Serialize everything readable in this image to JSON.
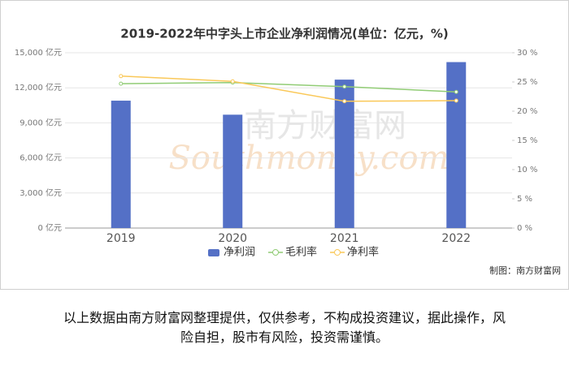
{
  "chart_data": {
    "type": "bar-line",
    "title": "2019-2022年中字头上市企业净利润情况(单位：亿元，%)",
    "categories": [
      "2019",
      "2020",
      "2021",
      "2022"
    ],
    "series": [
      {
        "name": "净利润",
        "type": "bar",
        "color": "#5470c6",
        "values": [
          10900,
          9700,
          12700,
          14200
        ]
      },
      {
        "name": "毛利率",
        "type": "line",
        "axis": "y2",
        "color": "#91cc75",
        "values": [
          24.7,
          24.9,
          24.2,
          23.3
        ]
      },
      {
        "name": "净利率",
        "type": "line",
        "axis": "y2",
        "color": "#fac858",
        "values": [
          26.0,
          25.1,
          21.7,
          21.8
        ]
      }
    ],
    "ylim": [
      0,
      15000
    ],
    "yticks": [
      {
        "value": 0,
        "label": "0 亿元"
      },
      {
        "value": 3000,
        "label": "3,000 亿元"
      },
      {
        "value": 6000,
        "label": "6,000 亿元"
      },
      {
        "value": 9000,
        "label": "9,000 亿元"
      },
      {
        "value": 12000,
        "label": "12,000 亿元"
      },
      {
        "value": 15000,
        "label": "15,000 亿元"
      }
    ],
    "y2lim": [
      0,
      30
    ],
    "y2ticks": [
      {
        "value": 0,
        "label": "0 %"
      },
      {
        "value": 5,
        "label": "5 %"
      },
      {
        "value": 10,
        "label": "10 %"
      },
      {
        "value": 15,
        "label": "15 %"
      },
      {
        "value": 20,
        "label": "20 %"
      },
      {
        "value": 25,
        "label": "25 %"
      },
      {
        "value": 30,
        "label": "30 %"
      }
    ],
    "grid": true,
    "legend": "bottom",
    "watermark": [
      "南方财富网",
      "Southmoney.com"
    ],
    "credit": "制图：南方财富网"
  },
  "disclaimer": [
    "以上数据由南方财富网整理提供，仅供参考，不构成投资建议，据此操作，风",
    "险自担，股市有风险，投资需谨慎。"
  ]
}
